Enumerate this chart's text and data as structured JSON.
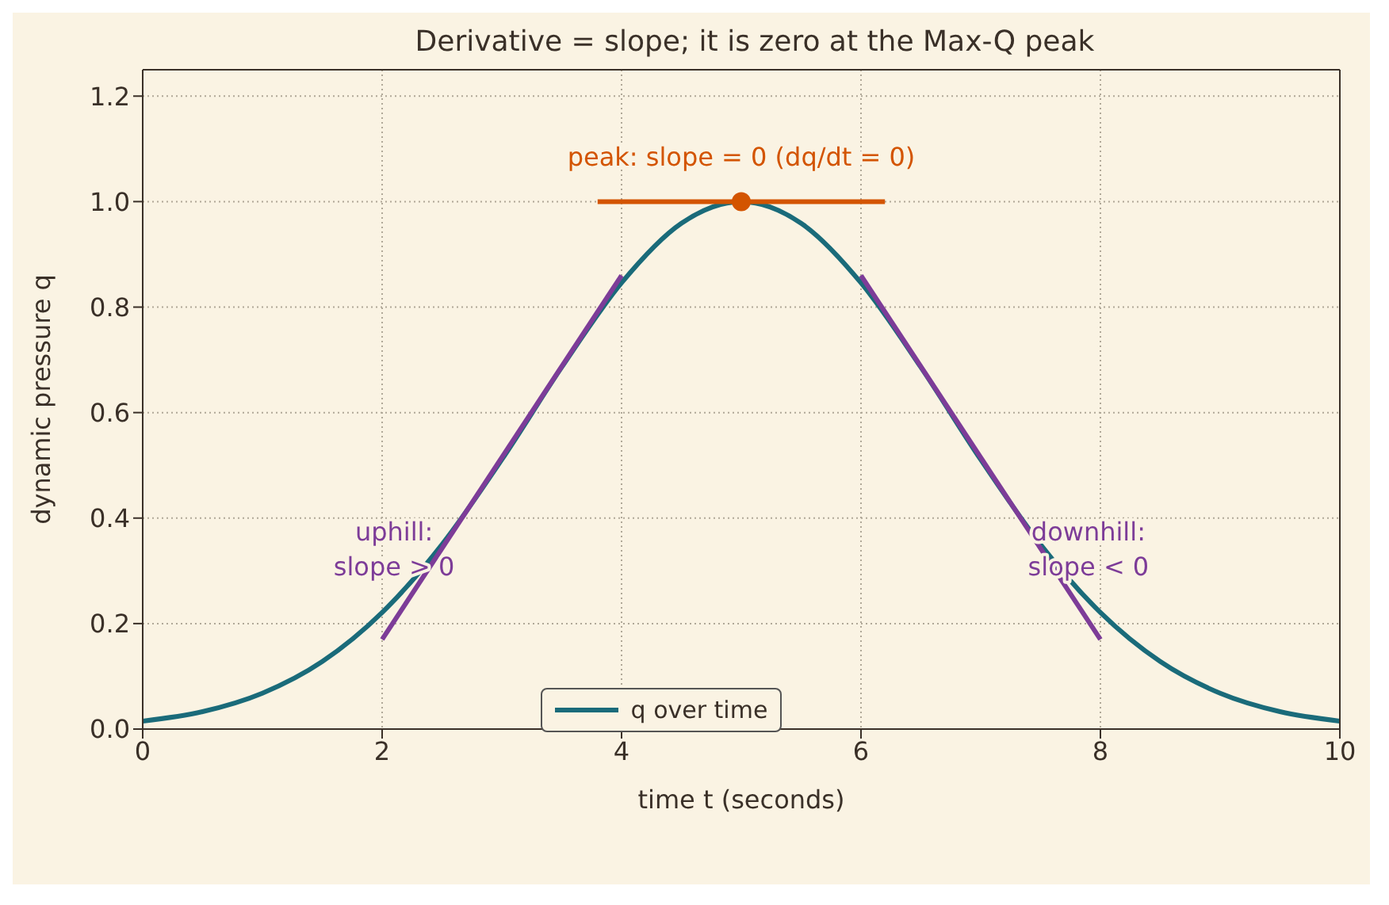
{
  "chart_data": {
    "type": "line",
    "title": "Derivative = slope; it is zero at the Max-Q peak",
    "xlabel": "time t (seconds)",
    "ylabel": "dynamic pressure q",
    "x": [
      0,
      0.5,
      1,
      1.5,
      2,
      2.5,
      3,
      3.5,
      4,
      4.5,
      5,
      5.5,
      6,
      6.5,
      7,
      7.5,
      8,
      8.5,
      9,
      9.5,
      10
    ],
    "series": [
      {
        "name": "q over time",
        "color": "#1a6b7a",
        "values": [
          0.015,
          0.033,
          0.068,
          0.128,
          0.221,
          0.35,
          0.511,
          0.686,
          0.846,
          0.959,
          1,
          0.959,
          0.846,
          0.686,
          0.511,
          0.35,
          0.221,
          0.128,
          0.068,
          0.033,
          0.015
        ]
      },
      {
        "type": "line",
        "color": "#7d3c98",
        "x": [
          2,
          4
        ],
        "values": [
          0.17,
          0.86
        ]
      },
      {
        "type": "line",
        "color": "#7d3c98",
        "x": [
          6,
          8
        ],
        "values": [
          0.86,
          0.17
        ]
      },
      {
        "type": "line",
        "color": "#d35400",
        "x": [
          3.8,
          6.2
        ],
        "values": [
          1,
          1
        ]
      },
      {
        "type": "scatter",
        "color": "#d35400",
        "x": [
          5
        ],
        "values": [
          1
        ]
      }
    ],
    "annotations": [
      "peak: slope = 0  (dq/dt = 0)",
      "uphill:\nslope > 0",
      "downhill:\nslope < 0"
    ],
    "xlim": [
      0,
      10
    ],
    "xticks": [
      0,
      2,
      4,
      6,
      8,
      10
    ],
    "ylim": [
      0,
      1.25
    ],
    "yticks": [
      {
        "value": 0,
        "label": "0.0"
      },
      0.2,
      0.4,
      0.6,
      0.8,
      {
        "value": 1,
        "label": "1.0"
      },
      1.2
    ],
    "grid": true,
    "legend": "bottom",
    "line_style": "solid"
  }
}
